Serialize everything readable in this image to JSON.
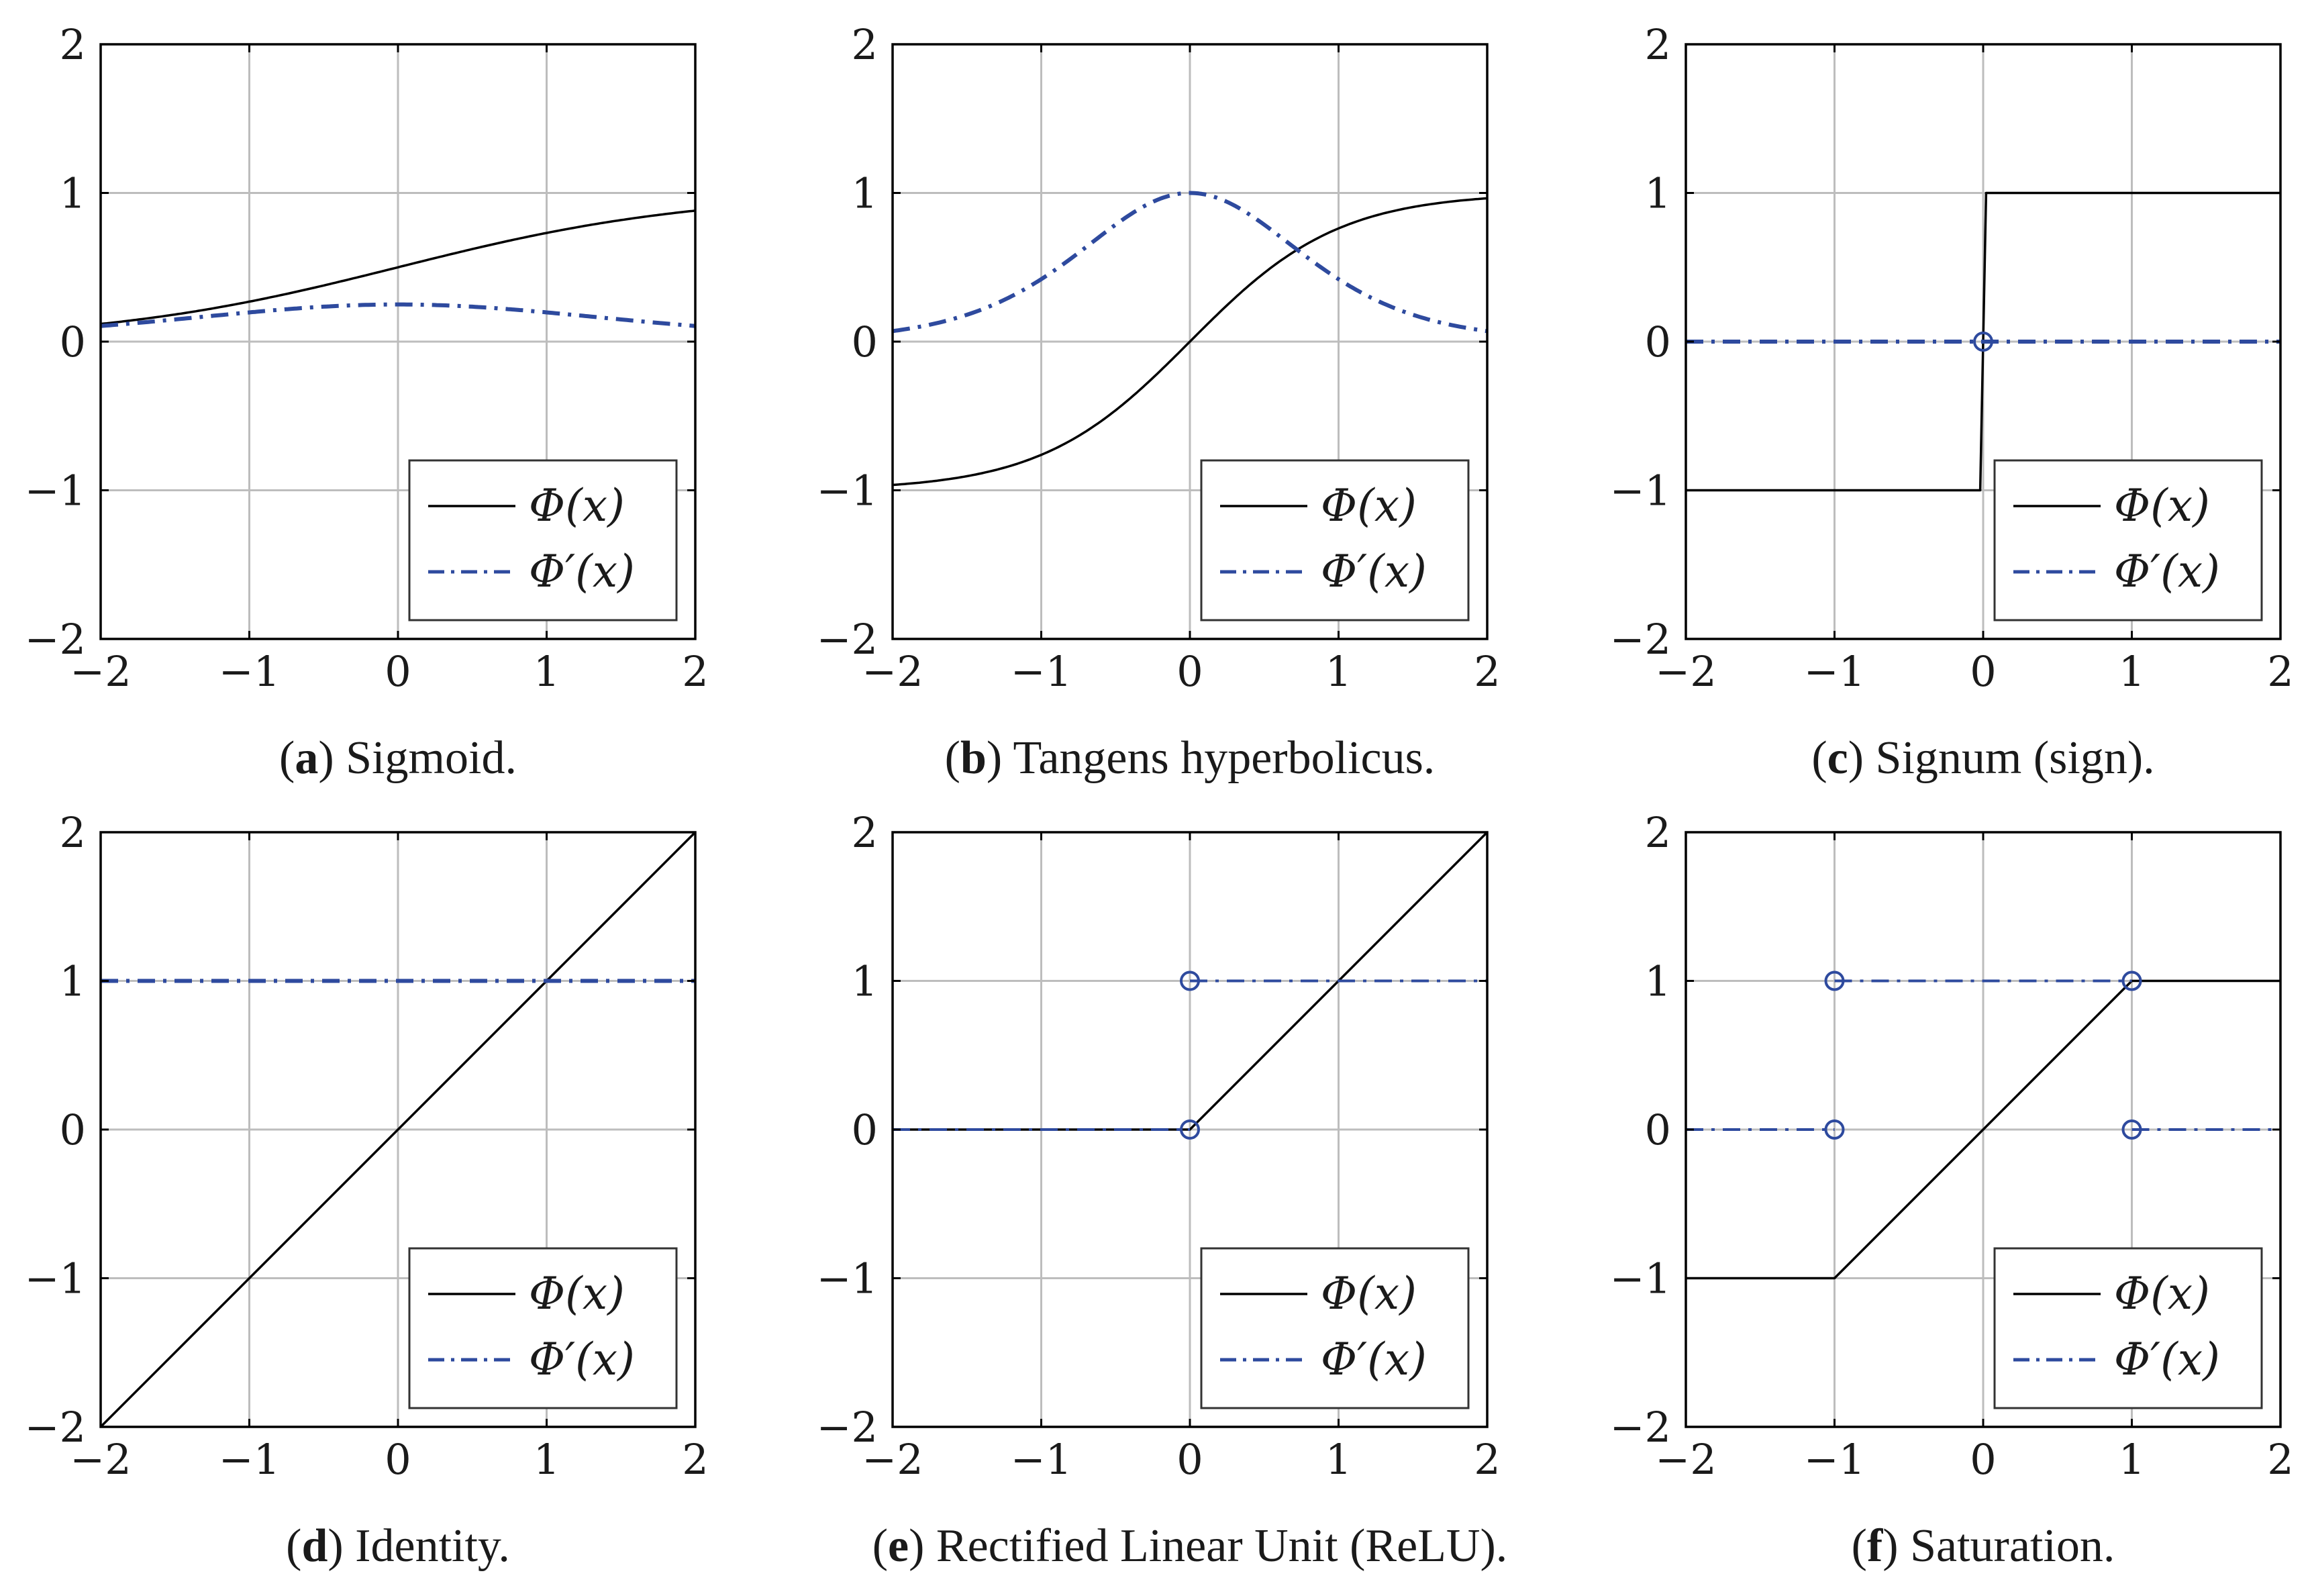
{
  "colors": {
    "phi": "#000000",
    "dphi": "#2e4a9e",
    "grid": "#bdbdbd",
    "axis": "#000000"
  },
  "axes": {
    "xlim": [
      -2,
      2
    ],
    "ylim": [
      -2,
      2
    ],
    "xticks": [
      -2,
      -1,
      0,
      1,
      2
    ],
    "yticks": [
      -2,
      -1,
      0,
      1,
      2
    ],
    "xtick_labels": [
      "−2",
      "−1",
      "0",
      "1",
      "2"
    ],
    "ytick_labels": [
      "−2",
      "−1",
      "0",
      "1",
      "2"
    ]
  },
  "legend": {
    "phi": "Φ(x)",
    "dphi": "Φ′(x)",
    "position": "bottom-right"
  },
  "chart_data": [
    {
      "type": "line",
      "label": "a",
      "caption": "Sigmoid.",
      "series": [
        {
          "name": "Φ(x)",
          "x": [
            -2,
            -1.5,
            -1,
            -0.5,
            0,
            0.5,
            1,
            1.5,
            2
          ],
          "values": [
            0.12,
            0.18,
            0.27,
            0.38,
            0.5,
            0.62,
            0.73,
            0.82,
            0.88
          ]
        },
        {
          "name": "Φ′(x)",
          "x": [
            -2,
            -1.5,
            -1,
            -0.5,
            0,
            0.5,
            1,
            1.5,
            2
          ],
          "values": [
            0.1,
            0.15,
            0.2,
            0.24,
            0.25,
            0.24,
            0.2,
            0.15,
            0.1
          ]
        }
      ],
      "markers": []
    },
    {
      "type": "line",
      "label": "b",
      "caption": "Tangens hyperbolicus.",
      "series": [
        {
          "name": "Φ(x)",
          "x": [
            -2,
            -1.5,
            -1,
            -0.5,
            0,
            0.5,
            1,
            1.5,
            2
          ],
          "values": [
            -0.96,
            -0.91,
            -0.76,
            -0.46,
            0,
            0.46,
            0.76,
            0.91,
            0.96
          ]
        },
        {
          "name": "Φ′(x)",
          "x": [
            -2,
            -1.5,
            -1,
            -0.5,
            0,
            0.5,
            1,
            1.5,
            2
          ],
          "values": [
            0.07,
            0.18,
            0.42,
            0.79,
            1,
            0.79,
            0.42,
            0.18,
            0.07
          ]
        }
      ],
      "markers": []
    },
    {
      "type": "line",
      "label": "c",
      "caption": "Signum (sign).",
      "series": [
        {
          "name": "Φ(x)",
          "x": [
            -2,
            -0.02,
            0.02,
            2
          ],
          "values": [
            -1,
            -1,
            1,
            1
          ]
        },
        {
          "name": "Φ′(x)",
          "x": [
            -2,
            2
          ],
          "values": [
            0,
            0
          ]
        }
      ],
      "markers": [
        [
          0,
          0
        ]
      ]
    },
    {
      "type": "line",
      "label": "d",
      "caption": "Identity.",
      "series": [
        {
          "name": "Φ(x)",
          "x": [
            -2,
            2
          ],
          "values": [
            -2,
            2
          ]
        },
        {
          "name": "Φ′(x)",
          "x": [
            -2,
            2
          ],
          "values": [
            1,
            1
          ]
        }
      ],
      "markers": []
    },
    {
      "type": "line",
      "label": "e",
      "caption": "Rectified Linear Unit (ReLU).",
      "series": [
        {
          "name": "Φ(x)",
          "x": [
            -2,
            0,
            2
          ],
          "values": [
            0,
            0,
            2
          ]
        },
        {
          "name": "Φ′(x)",
          "segments": [
            {
              "x": [
                -2,
                0
              ],
              "values": [
                0,
                0
              ]
            },
            {
              "x": [
                0,
                2
              ],
              "values": [
                1,
                1
              ]
            }
          ]
        }
      ],
      "markers": [
        [
          0,
          1
        ],
        [
          0,
          0
        ]
      ]
    },
    {
      "type": "line",
      "label": "f",
      "caption": "Saturation.",
      "series": [
        {
          "name": "Φ(x)",
          "x": [
            -2,
            -1,
            1,
            2
          ],
          "values": [
            -1,
            -1,
            1,
            1
          ]
        },
        {
          "name": "Φ′(x)",
          "segments": [
            {
              "x": [
                -2,
                -1
              ],
              "values": [
                0,
                0
              ]
            },
            {
              "x": [
                -1,
                1
              ],
              "values": [
                1,
                1
              ]
            },
            {
              "x": [
                1,
                2
              ],
              "values": [
                0,
                0
              ]
            }
          ]
        }
      ],
      "markers": [
        [
          -1,
          1
        ],
        [
          1,
          1
        ],
        [
          -1,
          0
        ],
        [
          1,
          0
        ]
      ]
    }
  ]
}
